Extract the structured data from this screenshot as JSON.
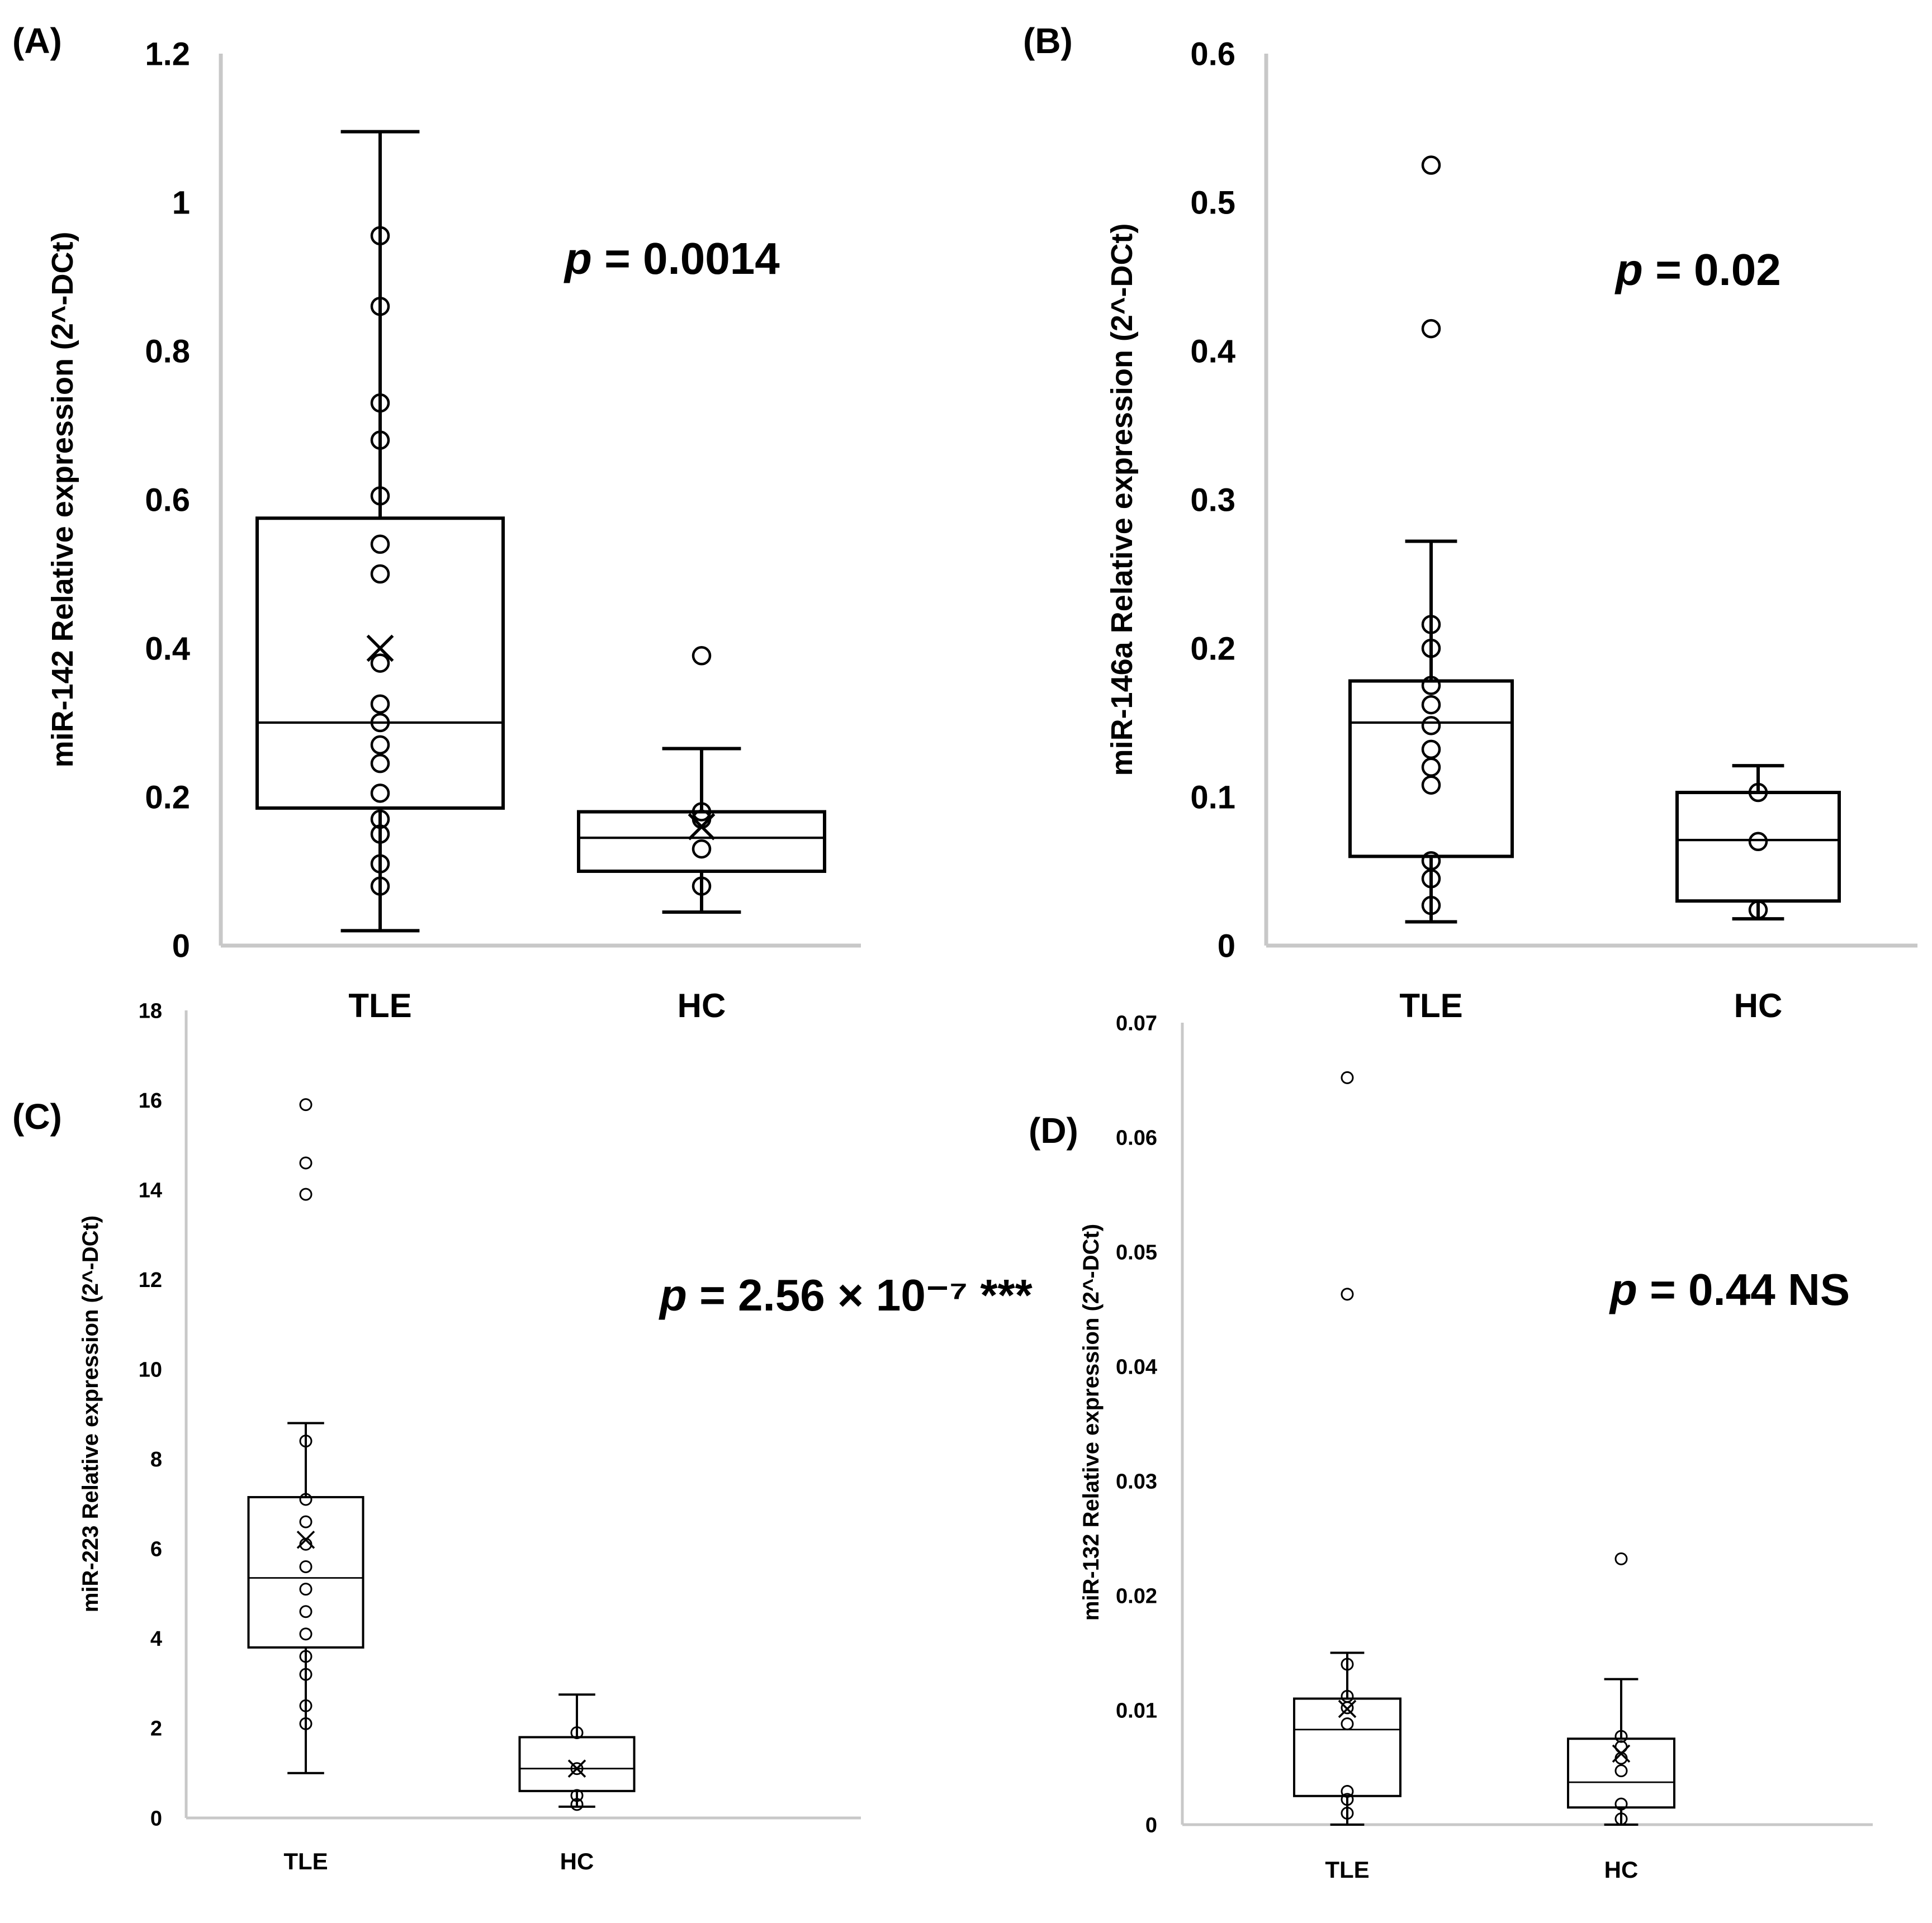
{
  "chart_data": [
    {
      "panel": "(A)",
      "type": "box",
      "title": "",
      "xlabel": "",
      "ylabel": "miR-142 Relative expression (2^-DCt)",
      "ylim": [
        0,
        1.2
      ],
      "yticks": [
        "0",
        "0.2",
        "0.4",
        "0.6",
        "0.8",
        "1",
        "1.2"
      ],
      "annotation": {
        "p_symbol": "p",
        "text": " = 0.0014"
      },
      "categories": [
        "TLE",
        "HC"
      ],
      "groups": [
        {
          "name": "TLE",
          "whisker_low": 0.02,
          "q1": 0.185,
          "median": 0.3,
          "q3": 0.575,
          "whisker_high": 1.095,
          "mean": 0.4,
          "points": [
            0.08,
            0.11,
            0.15,
            0.17,
            0.205,
            0.245,
            0.27,
            0.3,
            0.325,
            0.38,
            0.5,
            0.54,
            0.605,
            0.68,
            0.73,
            0.86,
            0.955
          ]
        },
        {
          "name": "HC",
          "whisker_low": 0.045,
          "q1": 0.1,
          "median": 0.145,
          "q3": 0.18,
          "whisker_high": 0.265,
          "mean": 0.16,
          "points": [
            0.08,
            0.13,
            0.17,
            0.18,
            0.39
          ]
        }
      ]
    },
    {
      "panel": "(B)",
      "type": "box",
      "title": "",
      "xlabel": "",
      "ylabel": "miR-146a Relative expression (2^-DCt)",
      "ylim": [
        0,
        0.6
      ],
      "yticks": [
        "0",
        "0.1",
        "0.2",
        "0.3",
        "0.4",
        "0.5",
        "0.6"
      ],
      "annotation": {
        "p_symbol": "p",
        "text": " = 0.02"
      },
      "categories": [
        "TLE",
        "HC"
      ],
      "groups": [
        {
          "name": "TLE",
          "whisker_low": 0.016,
          "q1": 0.06,
          "median": 0.15,
          "q3": 0.178,
          "whisker_high": 0.272,
          "mean": null,
          "points": [
            0.027,
            0.045,
            0.057,
            0.108,
            0.12,
            0.132,
            0.148,
            0.162,
            0.175,
            0.2,
            0.216,
            0.415,
            0.525
          ]
        },
        {
          "name": "HC",
          "whisker_low": 0.018,
          "q1": 0.03,
          "median": 0.071,
          "q3": 0.103,
          "whisker_high": 0.121,
          "mean": null,
          "points": [
            0.024,
            0.07,
            0.103
          ]
        }
      ]
    },
    {
      "panel": "(C)",
      "type": "box",
      "title": "",
      "xlabel": "",
      "ylabel": "miR-223 Relative expression (2^-DCt)",
      "ylim": [
        0,
        18
      ],
      "yticks": [
        "0",
        "2",
        "4",
        "6",
        "8",
        "10",
        "12",
        "14",
        "16",
        "18"
      ],
      "annotation": {
        "p_symbol": "p",
        "text": " = 2.56 × 10⁻⁷ ***"
      },
      "categories": [
        "TLE",
        "HC"
      ],
      "groups": [
        {
          "name": "TLE",
          "whisker_low": 1.0,
          "q1": 3.8,
          "median": 5.35,
          "q3": 7.15,
          "whisker_high": 8.8,
          "mean": 6.2,
          "points": [
            2.1,
            2.5,
            3.2,
            3.6,
            4.1,
            4.6,
            5.1,
            5.6,
            6.1,
            6.6,
            7.1,
            8.4,
            13.9,
            14.6,
            15.9
          ]
        },
        {
          "name": "HC",
          "whisker_low": 0.25,
          "q1": 0.6,
          "median": 1.1,
          "q3": 1.8,
          "whisker_high": 2.75,
          "mean": 1.1,
          "points": [
            0.3,
            0.5,
            1.1,
            1.9
          ]
        }
      ]
    },
    {
      "panel": "(D)",
      "type": "box",
      "title": "",
      "xlabel": "",
      "ylabel": "miR-132 Relative expression (2^-DCt)",
      "ylim": [
        0,
        0.07
      ],
      "yticks": [
        "0",
        "0.01",
        "0.02",
        "0.03",
        "0.04",
        "0.05",
        "0.06",
        "0.07"
      ],
      "annotation": {
        "p_symbol": "p",
        "text": " = 0.44 NS"
      },
      "categories": [
        "TLE",
        "HC"
      ],
      "groups": [
        {
          "name": "TLE",
          "whisker_low": 0.0,
          "q1": 0.0025,
          "median": 0.0083,
          "q3": 0.011,
          "whisker_high": 0.015,
          "mean": 0.0101,
          "points": [
            0.001,
            0.0022,
            0.0029,
            0.0088,
            0.0102,
            0.0112,
            0.014,
            0.0463,
            0.0652
          ]
        },
        {
          "name": "HC",
          "whisker_low": 0.0,
          "q1": 0.0015,
          "median": 0.0037,
          "q3": 0.0075,
          "whisker_high": 0.0127,
          "mean": 0.0062,
          "points": [
            0.0005,
            0.0018,
            0.0047,
            0.0058,
            0.0068,
            0.0077,
            0.0232
          ]
        }
      ]
    }
  ]
}
